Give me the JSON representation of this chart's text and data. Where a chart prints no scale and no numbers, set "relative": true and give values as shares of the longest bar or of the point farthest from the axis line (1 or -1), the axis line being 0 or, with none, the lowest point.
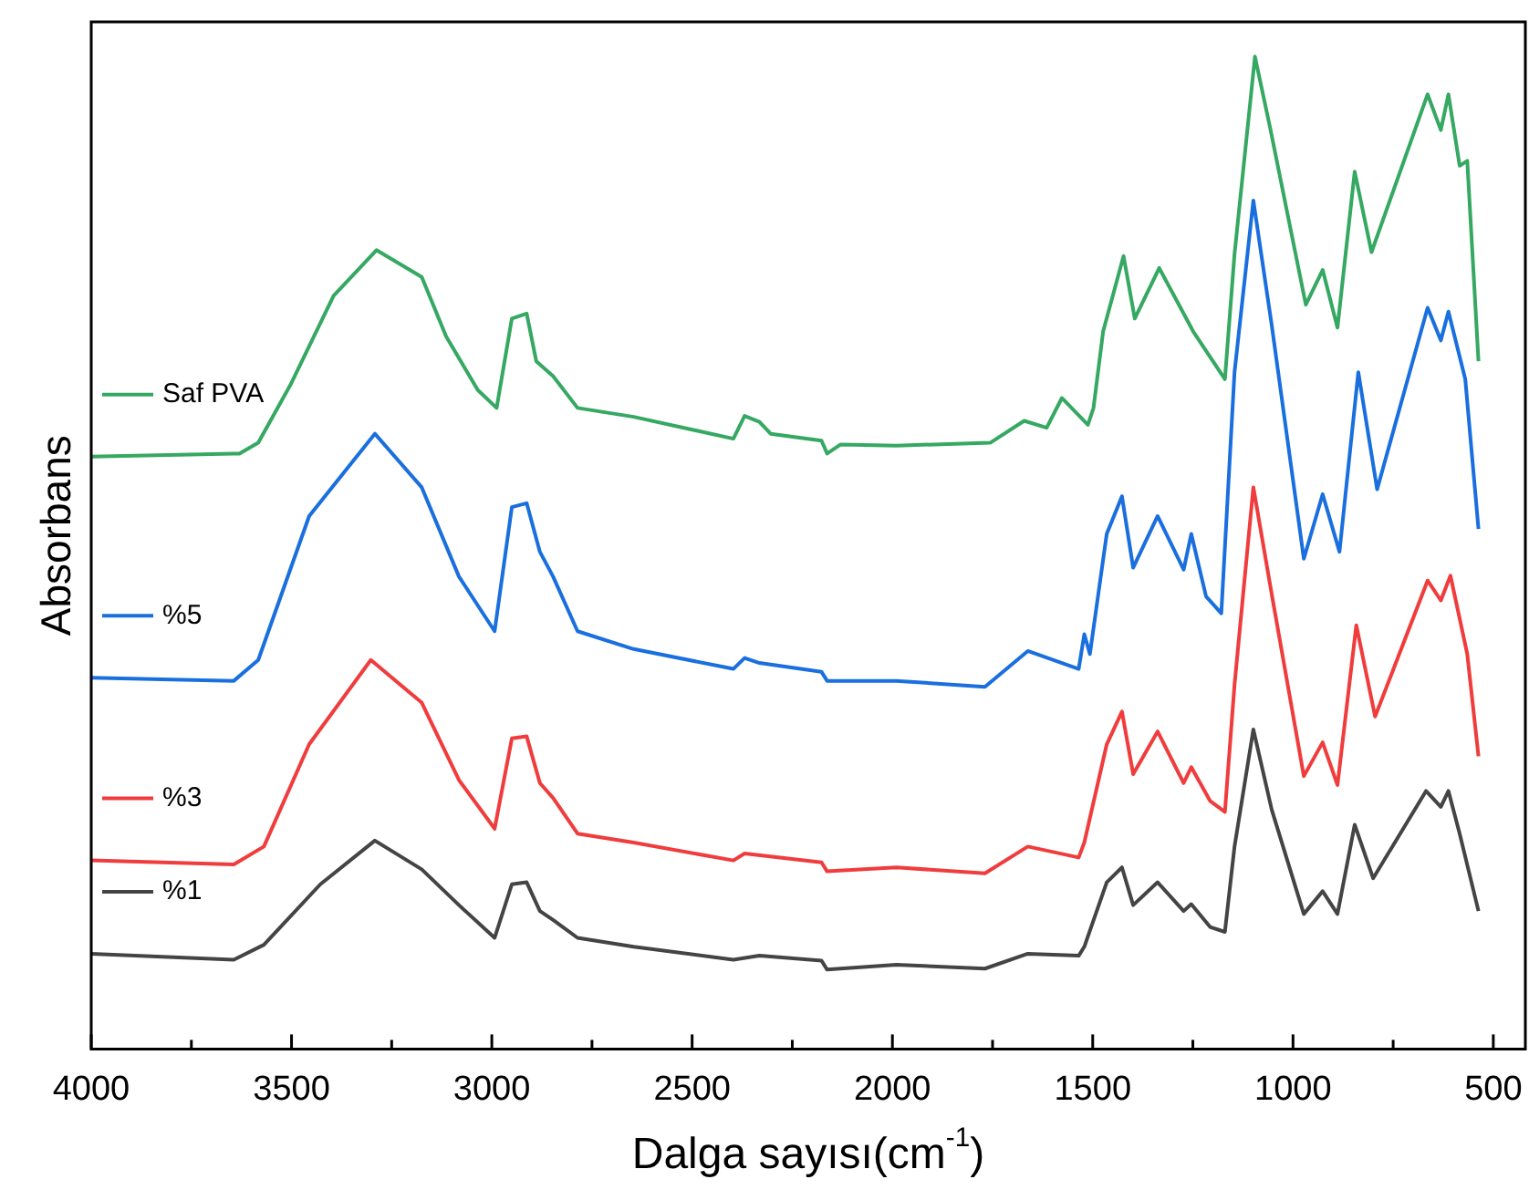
{
  "chart_data": {
    "type": "line",
    "xlabel": "Dalga sayısı(cm$^{-1}$)",
    "ylabel": "Absorbans",
    "relative": true,
    "legend": "left",
    "marker": "none",
    "line_style": "solid",
    "xlim": [
      4000,
      420
    ],
    "xticks": [
      4000,
      {
        "value": 3750,
        "label": null
      },
      3500,
      {
        "value": 3250,
        "label": null
      },
      3000,
      {
        "value": 2750,
        "label": null
      },
      2500,
      {
        "value": 2250,
        "label": null
      },
      2000,
      {
        "value": 1750,
        "label": null
      },
      1500,
      {
        "value": 1250,
        "label": null
      },
      1000,
      {
        "value": 750,
        "label": null
      },
      500
    ],
    "series": [
      {
        "name": "Saf PVA",
        "color": "#35a862",
        "x": [
          4000,
          3630,
          3583,
          3503,
          3395,
          3288,
          3175,
          3114,
          3035,
          2988,
          2950,
          2913,
          2889,
          2847,
          2786,
          2646,
          2397,
          2369,
          2332,
          2304,
          2177,
          2163,
          2130,
          1990,
          1755,
          1671,
          1615,
          1577,
          1512,
          1498,
          1474,
          1423,
          1395,
          1334,
          1249,
          1170,
          1146,
          1095,
          1057,
          968,
          926,
          889,
          846,
          804,
          664,
          631,
          612,
          584,
          565,
          537
        ],
        "values": [
          0.597,
          0.6,
          0.611,
          0.669,
          0.759,
          0.805,
          0.778,
          0.718,
          0.664,
          0.646,
          0.736,
          0.741,
          0.693,
          0.678,
          0.646,
          0.637,
          0.615,
          0.638,
          0.632,
          0.62,
          0.613,
          0.6,
          0.609,
          0.608,
          0.611,
          0.633,
          0.626,
          0.656,
          0.629,
          0.646,
          0.723,
          0.799,
          0.736,
          0.787,
          0.723,
          0.675,
          0.801,
          1,
          0.928,
          0.75,
          0.785,
          0.727,
          0.884,
          0.803,
          0.962,
          0.926,
          0.962,
          0.89,
          0.895,
          0.693
        ]
      },
      {
        "name": "%5",
        "color": "#1a6fdf",
        "x": [
          4000,
          3644,
          3583,
          3456,
          3292,
          3175,
          3082,
          2993,
          2950,
          2913,
          2880,
          2847,
          2786,
          2646,
          2397,
          2369,
          2332,
          2177,
          2163,
          1990,
          1769,
          1662,
          1535,
          1521,
          1507,
          1465,
          1427,
          1399,
          1338,
          1273,
          1254,
          1217,
          1179,
          1146,
          1099,
          1053,
          973,
          926,
          884,
          837,
          790,
          664,
          631,
          612,
          570,
          537
        ],
        "values": [
          0.374,
          0.371,
          0.392,
          0.537,
          0.62,
          0.566,
          0.476,
          0.421,
          0.546,
          0.55,
          0.501,
          0.476,
          0.421,
          0.403,
          0.383,
          0.394,
          0.389,
          0.38,
          0.371,
          0.371,
          0.365,
          0.401,
          0.383,
          0.418,
          0.398,
          0.519,
          0.557,
          0.485,
          0.537,
          0.483,
          0.519,
          0.456,
          0.439,
          0.682,
          0.855,
          0.729,
          0.494,
          0.559,
          0.501,
          0.682,
          0.564,
          0.747,
          0.714,
          0.743,
          0.675,
          0.524
        ]
      },
      {
        "name": "%3",
        "color": "#f03c3c",
        "x": [
          4000,
          3644,
          3569,
          3456,
          3302,
          3175,
          3082,
          2993,
          2950,
          2913,
          2880,
          2847,
          2786,
          2646,
          2397,
          2369,
          2177,
          2163,
          1990,
          1769,
          1662,
          1535,
          1521,
          1465,
          1427,
          1399,
          1338,
          1273,
          1254,
          1207,
          1170,
          1146,
          1099,
          1053,
          973,
          926,
          889,
          842,
          795,
          664,
          631,
          607,
          565,
          537
        ],
        "values": [
          0.19,
          0.186,
          0.204,
          0.307,
          0.392,
          0.349,
          0.271,
          0.222,
          0.313,
          0.315,
          0.268,
          0.253,
          0.217,
          0.208,
          0.19,
          0.197,
          0.188,
          0.179,
          0.183,
          0.177,
          0.204,
          0.193,
          0.208,
          0.307,
          0.34,
          0.277,
          0.32,
          0.268,
          0.284,
          0.25,
          0.239,
          0.367,
          0.566,
          0.458,
          0.275,
          0.309,
          0.266,
          0.427,
          0.335,
          0.472,
          0.452,
          0.477,
          0.398,
          0.295
        ]
      },
      {
        "name": "%1",
        "color": "#444444",
        "x": [
          4000,
          3644,
          3569,
          3428,
          3292,
          3175,
          3082,
          2993,
          2950,
          2913,
          2880,
          2847,
          2786,
          2646,
          2397,
          2332,
          2177,
          2163,
          1990,
          1769,
          1662,
          1535,
          1521,
          1465,
          1427,
          1399,
          1338,
          1273,
          1254,
          1207,
          1170,
          1146,
          1099,
          1053,
          973,
          926,
          889,
          846,
          800,
          668,
          631,
          612,
          584,
          537
        ],
        "values": [
          0.096,
          0.09,
          0.105,
          0.166,
          0.21,
          0.181,
          0.145,
          0.112,
          0.166,
          0.168,
          0.139,
          0.13,
          0.112,
          0.103,
          0.09,
          0.094,
          0.089,
          0.08,
          0.085,
          0.081,
          0.096,
          0.094,
          0.103,
          0.168,
          0.183,
          0.145,
          0.168,
          0.139,
          0.146,
          0.123,
          0.118,
          0.204,
          0.322,
          0.241,
          0.136,
          0.159,
          0.136,
          0.226,
          0.172,
          0.26,
          0.244,
          0.26,
          0.217,
          0.139
        ]
      }
    ]
  }
}
